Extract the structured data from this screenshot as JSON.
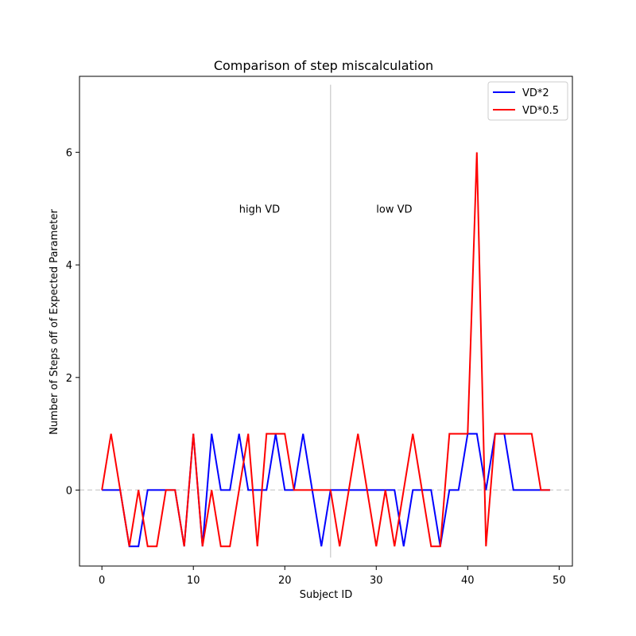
{
  "chart_data": {
    "type": "line",
    "title": "Comparison of step miscalculation",
    "xlabel": "Subject ID",
    "ylabel": "Number of Steps off of Expected Parameter",
    "xlim": [
      -2.45,
      51.45
    ],
    "ylim": [
      -1.35,
      7.35
    ],
    "xticks": [
      0,
      10,
      20,
      30,
      40,
      50
    ],
    "yticks": [
      0,
      2,
      4,
      6
    ],
    "x": [
      0,
      1,
      2,
      3,
      4,
      5,
      6,
      7,
      8,
      9,
      10,
      11,
      12,
      13,
      14,
      15,
      16,
      17,
      18,
      19,
      20,
      21,
      22,
      23,
      24,
      25,
      26,
      27,
      28,
      29,
      30,
      31,
      32,
      33,
      34,
      35,
      36,
      37,
      38,
      39,
      40,
      41,
      42,
      43,
      44,
      45,
      46,
      47,
      48,
      49
    ],
    "series": [
      {
        "name": "VD*2",
        "color": "#0000ff",
        "values": [
          0,
          0,
          0,
          -1,
          -1,
          0,
          0,
          0,
          0,
          -1,
          1,
          -1,
          1,
          0,
          0,
          1,
          0,
          0,
          0,
          1,
          0,
          0,
          1,
          0,
          -1,
          0,
          0,
          0,
          0,
          0,
          0,
          0,
          0,
          -1,
          0,
          0,
          0,
          -1,
          0,
          0,
          1,
          1,
          0,
          1,
          1,
          0,
          0,
          0,
          0,
          0
        ]
      },
      {
        "name": "VD*0.5",
        "color": "#ff0000",
        "values": [
          0,
          1,
          0,
          -1,
          0,
          -1,
          -1,
          0,
          0,
          -1,
          1,
          -1,
          0,
          -1,
          -1,
          0,
          1,
          -1,
          1,
          1,
          1,
          0,
          0,
          0,
          0,
          0,
          -1,
          0,
          1,
          0,
          -1,
          0,
          -1,
          0,
          1,
          0,
          -1,
          -1,
          1,
          1,
          1,
          6,
          -1,
          1,
          1,
          1,
          1,
          1,
          0,
          0
        ]
      }
    ],
    "reference_lines": {
      "horizontal_zero": {
        "y": 0,
        "color": "#d3d3d3",
        "style": "dashed"
      },
      "vertical_split": {
        "x": 25,
        "y_range": [
          -1.2,
          7.2
        ],
        "color": "#d3d3d3"
      }
    },
    "annotations": [
      {
        "text": "high VD",
        "x": 15,
        "y": 5
      },
      {
        "text": "low VD",
        "x": 30,
        "y": 5
      }
    ],
    "legend_position": "upper-right"
  }
}
